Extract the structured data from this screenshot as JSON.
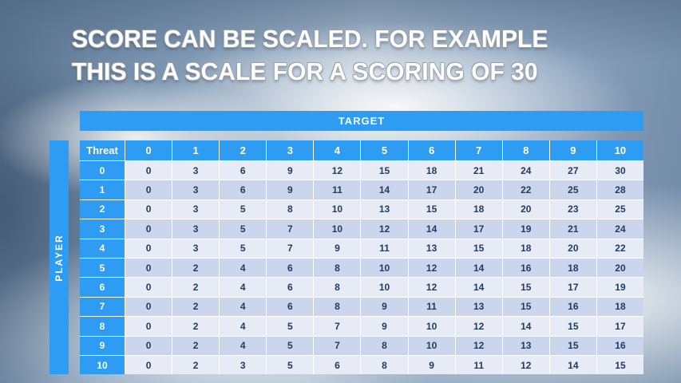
{
  "title": {
    "line1": "SCORE CAN BE SCALED. FOR EXAMPLE",
    "line2": "THIS IS A SCALE FOR A SCORING OF 30"
  },
  "table": {
    "target_label": "TARGET",
    "player_label": "PLAYER",
    "threat_label": "Threat",
    "columns": [
      "0",
      "1",
      "2",
      "3",
      "4",
      "5",
      "6",
      "7",
      "8",
      "9",
      "10"
    ],
    "rows": [
      {
        "label": "0",
        "values": [
          0,
          3,
          6,
          9,
          12,
          15,
          18,
          21,
          24,
          27,
          30
        ]
      },
      {
        "label": "1",
        "values": [
          0,
          3,
          6,
          9,
          11,
          14,
          17,
          20,
          22,
          25,
          28
        ]
      },
      {
        "label": "2",
        "values": [
          0,
          3,
          5,
          8,
          10,
          13,
          15,
          18,
          20,
          23,
          25
        ]
      },
      {
        "label": "3",
        "values": [
          0,
          3,
          5,
          7,
          10,
          12,
          14,
          17,
          19,
          21,
          24
        ]
      },
      {
        "label": "4",
        "values": [
          0,
          3,
          5,
          7,
          9,
          11,
          13,
          15,
          18,
          20,
          22
        ]
      },
      {
        "label": "5",
        "values": [
          0,
          2,
          4,
          6,
          8,
          10,
          12,
          14,
          16,
          18,
          20
        ]
      },
      {
        "label": "6",
        "values": [
          0,
          2,
          4,
          6,
          8,
          10,
          12,
          14,
          15,
          17,
          19
        ]
      },
      {
        "label": "7",
        "values": [
          0,
          2,
          4,
          6,
          8,
          9,
          11,
          13,
          15,
          16,
          18
        ]
      },
      {
        "label": "8",
        "values": [
          0,
          2,
          4,
          5,
          7,
          9,
          10,
          12,
          14,
          15,
          17
        ]
      },
      {
        "label": "9",
        "values": [
          0,
          2,
          4,
          5,
          7,
          8,
          10,
          12,
          13,
          15,
          16
        ]
      },
      {
        "label": "10",
        "values": [
          0,
          2,
          3,
          5,
          6,
          8,
          9,
          11,
          12,
          14,
          15
        ]
      }
    ]
  },
  "colors": {
    "accent_blue": "#2F9CF4",
    "band_light": "#E7EBF6",
    "band_dark": "#CBD5EC",
    "body_text": "#1F3C63"
  }
}
